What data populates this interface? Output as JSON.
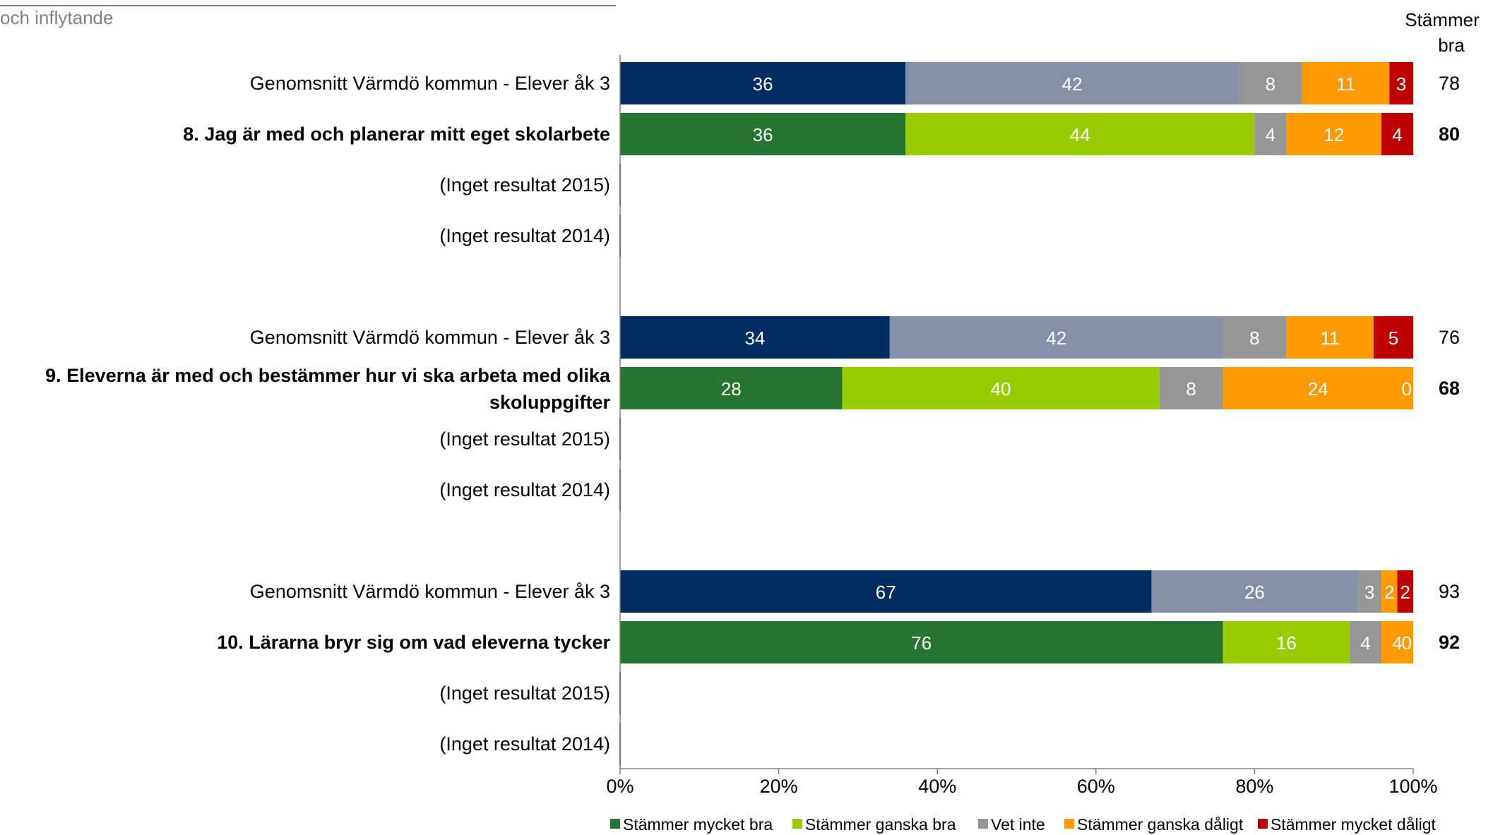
{
  "header": {
    "title": "och inflytande"
  },
  "chart_data": {
    "type": "bar",
    "orientation": "horizontal",
    "stacked": true,
    "xlim": [
      0,
      100
    ],
    "x_ticks": [
      "0%",
      "20%",
      "40%",
      "60%",
      "80%",
      "100%"
    ],
    "grid": false,
    "legend_position": "bottom",
    "right_column_title": "Stämmer bra",
    "legend": [
      {
        "label": "Stämmer mycket bra",
        "color": "#277532"
      },
      {
        "label": "Stämmer ganska bra",
        "color": "#99CC00"
      },
      {
        "label": "Vet inte",
        "color": "#969696"
      },
      {
        "label": "Stämmer ganska dåligt",
        "color": "#FF9900"
      },
      {
        "label": "Stämmer mycket dåligt",
        "color": "#C00000"
      }
    ],
    "avg_colors": [
      "#002D62",
      "#8590A8",
      "#969696",
      "#FF9900",
      "#C00000"
    ],
    "groups": [
      {
        "rows": [
          {
            "label": "Genomsnitt Värmdö kommun - Elever åk 3",
            "kind": "avg",
            "values": [
              36,
              42,
              8,
              11,
              3
            ],
            "total": "78"
          },
          {
            "label": "8. Jag är med och planerar mitt eget skolarbete",
            "kind": "main",
            "values": [
              36,
              44,
              4,
              12,
              4
            ],
            "total": "80"
          },
          {
            "label": "(Inget resultat 2015)",
            "kind": "none"
          },
          {
            "label": "(Inget resultat 2014)",
            "kind": "none"
          }
        ]
      },
      {
        "rows": [
          {
            "label": "Genomsnitt Värmdö kommun - Elever åk 3",
            "kind": "avg",
            "values": [
              34,
              42,
              8,
              11,
              5
            ],
            "total": "76"
          },
          {
            "label": "9. Eleverna är med och bestämmer hur vi ska arbeta med olika skoluppgifter",
            "kind": "main",
            "label_lines": [
              "9. Eleverna är med och bestämmer hur vi ska arbeta med olika",
              "skoluppgifter"
            ],
            "values": [
              28,
              40,
              8,
              24,
              0
            ],
            "total": "68"
          },
          {
            "label": "(Inget resultat 2015)",
            "kind": "none"
          },
          {
            "label": "(Inget resultat 2014)",
            "kind": "none"
          }
        ]
      },
      {
        "rows": [
          {
            "label": "Genomsnitt Värmdö kommun - Elever åk 3",
            "kind": "avg",
            "values": [
              67,
              26,
              3,
              2,
              2
            ],
            "total": "93"
          },
          {
            "label": "10. Lärarna bryr sig om vad eleverna tycker",
            "kind": "main",
            "values": [
              76,
              16,
              4,
              4,
              0
            ],
            "total": "92"
          },
          {
            "label": "(Inget resultat 2015)",
            "kind": "none"
          },
          {
            "label": "(Inget resultat 2014)",
            "kind": "none"
          }
        ]
      }
    ]
  }
}
